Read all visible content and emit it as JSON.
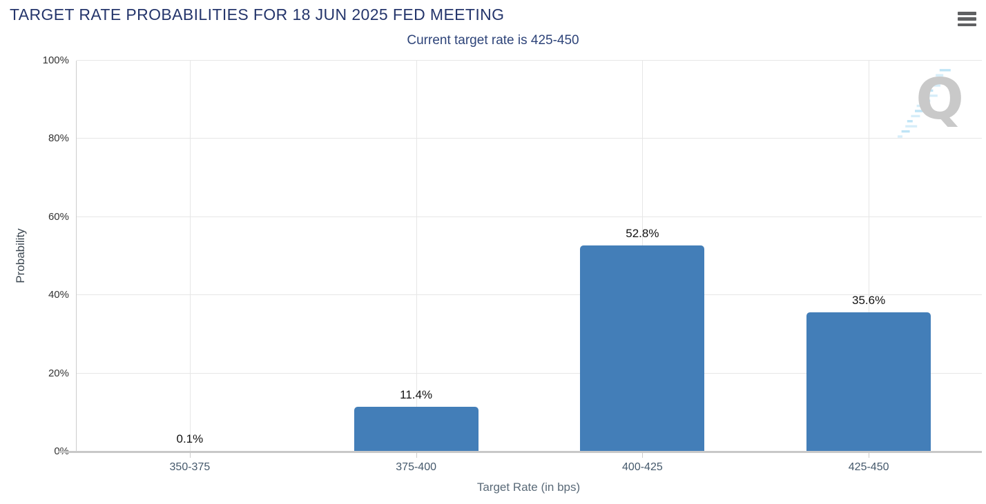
{
  "header": {
    "title": "TARGET RATE PROBABILITIES FOR 18 JUN 2025 FED MEETING",
    "subtitle": "Current target rate is 425-450"
  },
  "menu": {
    "icon": "hamburger-icon"
  },
  "watermark": {
    "letter": "Q"
  },
  "chart_data": {
    "type": "bar",
    "title": "TARGET RATE PROBABILITIES FOR 18 JUN 2025 FED MEETING",
    "subtitle": "Current target rate is 425-450",
    "categories": [
      "350-375",
      "375-400",
      "400-425",
      "425-450"
    ],
    "values": [
      0.1,
      11.4,
      52.8,
      35.6
    ],
    "data_labels": [
      "0.1%",
      "11.4%",
      "52.8%",
      "35.6%"
    ],
    "xlabel": "Target Rate (in bps)",
    "ylabel": "Probability",
    "ylim": [
      0,
      100
    ],
    "ytick_labels": [
      "0%",
      "20%",
      "40%",
      "60%",
      "80%",
      "100%"
    ],
    "grid": true,
    "legend": "none",
    "bar_color": "#437eb8"
  },
  "colors": {
    "title": "#24356b",
    "subtitle": "#2e4479",
    "bar": "#437eb8",
    "gridline": "#e6e6e6",
    "axis_line": "#cccccc",
    "baseline": "#c8c8c8",
    "data_label": "#111111",
    "category_label": "#44586b",
    "ytick_label": "#333333",
    "menu_icon": "#5f6062",
    "watermark_q": "#c9c9c9",
    "watermark_dash": "#b5e0f5"
  }
}
